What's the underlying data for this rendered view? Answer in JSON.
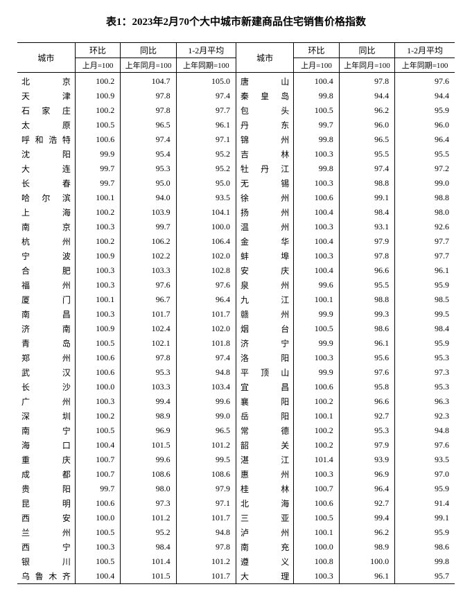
{
  "title": "表1：2023年2月70个大中城市新建商品住宅销售价格指数",
  "headers": {
    "city": "城市",
    "mom": "环比",
    "yoy": "同比",
    "avg": "1-2月平均",
    "mom_sub": "上月=100",
    "yoy_sub": "上年同月=100",
    "avg_sub": "上年同期=100"
  },
  "left": [
    {
      "city": "北京",
      "mom": "100.2",
      "yoy": "104.7",
      "avg": "105.0"
    },
    {
      "city": "天津",
      "mom": "100.9",
      "yoy": "97.8",
      "avg": "97.4"
    },
    {
      "city": "石家庄",
      "mom": "100.2",
      "yoy": "97.8",
      "avg": "97.7"
    },
    {
      "city": "太原",
      "mom": "100.5",
      "yoy": "96.5",
      "avg": "96.1"
    },
    {
      "city": "呼和浩特",
      "mom": "100.6",
      "yoy": "97.4",
      "avg": "97.1"
    },
    {
      "city": "沈阳",
      "mom": "99.9",
      "yoy": "95.4",
      "avg": "95.2"
    },
    {
      "city": "大连",
      "mom": "99.7",
      "yoy": "95.3",
      "avg": "95.2"
    },
    {
      "city": "长春",
      "mom": "99.7",
      "yoy": "95.0",
      "avg": "95.0"
    },
    {
      "city": "哈尔滨",
      "mom": "100.1",
      "yoy": "94.0",
      "avg": "93.5"
    },
    {
      "city": "上海",
      "mom": "100.2",
      "yoy": "103.9",
      "avg": "104.1"
    },
    {
      "city": "南京",
      "mom": "100.3",
      "yoy": "99.7",
      "avg": "100.0"
    },
    {
      "city": "杭州",
      "mom": "100.2",
      "yoy": "106.2",
      "avg": "106.4"
    },
    {
      "city": "宁波",
      "mom": "100.9",
      "yoy": "102.2",
      "avg": "102.0"
    },
    {
      "city": "合肥",
      "mom": "100.3",
      "yoy": "103.3",
      "avg": "102.8"
    },
    {
      "city": "福州",
      "mom": "100.3",
      "yoy": "97.6",
      "avg": "97.6"
    },
    {
      "city": "厦门",
      "mom": "100.1",
      "yoy": "96.7",
      "avg": "96.4"
    },
    {
      "city": "南昌",
      "mom": "100.3",
      "yoy": "101.7",
      "avg": "101.7"
    },
    {
      "city": "济南",
      "mom": "100.9",
      "yoy": "102.4",
      "avg": "102.0"
    },
    {
      "city": "青岛",
      "mom": "100.5",
      "yoy": "102.1",
      "avg": "101.8"
    },
    {
      "city": "郑州",
      "mom": "100.6",
      "yoy": "97.8",
      "avg": "97.4"
    },
    {
      "city": "武汉",
      "mom": "100.6",
      "yoy": "95.3",
      "avg": "94.8"
    },
    {
      "city": "长沙",
      "mom": "100.0",
      "yoy": "103.3",
      "avg": "103.4"
    },
    {
      "city": "广州",
      "mom": "100.3",
      "yoy": "99.4",
      "avg": "99.6"
    },
    {
      "city": "深圳",
      "mom": "100.2",
      "yoy": "98.9",
      "avg": "99.0"
    },
    {
      "city": "南宁",
      "mom": "100.5",
      "yoy": "96.9",
      "avg": "96.5"
    },
    {
      "city": "海口",
      "mom": "100.4",
      "yoy": "101.5",
      "avg": "101.2"
    },
    {
      "city": "重庆",
      "mom": "100.7",
      "yoy": "99.6",
      "avg": "99.5"
    },
    {
      "city": "成都",
      "mom": "100.7",
      "yoy": "108.6",
      "avg": "108.6"
    },
    {
      "city": "贵阳",
      "mom": "99.7",
      "yoy": "98.0",
      "avg": "97.9"
    },
    {
      "city": "昆明",
      "mom": "100.6",
      "yoy": "97.3",
      "avg": "97.1"
    },
    {
      "city": "西安",
      "mom": "100.0",
      "yoy": "101.2",
      "avg": "101.7"
    },
    {
      "city": "兰州",
      "mom": "100.5",
      "yoy": "95.2",
      "avg": "94.8"
    },
    {
      "city": "西宁",
      "mom": "100.3",
      "yoy": "98.4",
      "avg": "97.8"
    },
    {
      "city": "银川",
      "mom": "100.5",
      "yoy": "101.4",
      "avg": "101.2"
    },
    {
      "city": "乌鲁木齐",
      "mom": "100.4",
      "yoy": "101.5",
      "avg": "101.7"
    }
  ],
  "right": [
    {
      "city": "唐山",
      "mom": "100.4",
      "yoy": "97.8",
      "avg": "97.6"
    },
    {
      "city": "秦皇岛",
      "mom": "99.8",
      "yoy": "94.4",
      "avg": "94.4"
    },
    {
      "city": "包头",
      "mom": "100.5",
      "yoy": "96.2",
      "avg": "95.9"
    },
    {
      "city": "丹东",
      "mom": "99.7",
      "yoy": "96.0",
      "avg": "96.0"
    },
    {
      "city": "锦州",
      "mom": "99.8",
      "yoy": "96.5",
      "avg": "96.4"
    },
    {
      "city": "吉林",
      "mom": "100.3",
      "yoy": "95.5",
      "avg": "95.5"
    },
    {
      "city": "牡丹江",
      "mom": "99.8",
      "yoy": "97.4",
      "avg": "97.2"
    },
    {
      "city": "无锡",
      "mom": "100.3",
      "yoy": "98.8",
      "avg": "99.0"
    },
    {
      "city": "徐州",
      "mom": "100.6",
      "yoy": "99.1",
      "avg": "98.8"
    },
    {
      "city": "扬州",
      "mom": "100.4",
      "yoy": "98.4",
      "avg": "98.0"
    },
    {
      "city": "温州",
      "mom": "100.3",
      "yoy": "93.1",
      "avg": "92.6"
    },
    {
      "city": "金华",
      "mom": "100.4",
      "yoy": "97.9",
      "avg": "97.7"
    },
    {
      "city": "蚌埠",
      "mom": "100.3",
      "yoy": "97.8",
      "avg": "97.7"
    },
    {
      "city": "安庆",
      "mom": "100.4",
      "yoy": "96.6",
      "avg": "96.1"
    },
    {
      "city": "泉州",
      "mom": "99.6",
      "yoy": "95.5",
      "avg": "95.9"
    },
    {
      "city": "九江",
      "mom": "100.1",
      "yoy": "98.8",
      "avg": "98.5"
    },
    {
      "city": "赣州",
      "mom": "99.9",
      "yoy": "99.3",
      "avg": "99.5"
    },
    {
      "city": "烟台",
      "mom": "100.5",
      "yoy": "98.6",
      "avg": "98.4"
    },
    {
      "city": "济宁",
      "mom": "99.9",
      "yoy": "96.1",
      "avg": "95.9"
    },
    {
      "city": "洛阳",
      "mom": "100.3",
      "yoy": "95.6",
      "avg": "95.3"
    },
    {
      "city": "平顶山",
      "mom": "99.9",
      "yoy": "97.6",
      "avg": "97.3"
    },
    {
      "city": "宜昌",
      "mom": "100.6",
      "yoy": "95.8",
      "avg": "95.3"
    },
    {
      "city": "襄阳",
      "mom": "100.2",
      "yoy": "96.6",
      "avg": "96.3"
    },
    {
      "city": "岳阳",
      "mom": "100.1",
      "yoy": "92.7",
      "avg": "92.3"
    },
    {
      "city": "常德",
      "mom": "100.2",
      "yoy": "95.3",
      "avg": "94.8"
    },
    {
      "city": "韶关",
      "mom": "100.2",
      "yoy": "97.9",
      "avg": "97.6"
    },
    {
      "city": "湛江",
      "mom": "101.4",
      "yoy": "93.9",
      "avg": "93.5"
    },
    {
      "city": "惠州",
      "mom": "100.3",
      "yoy": "96.9",
      "avg": "97.0"
    },
    {
      "city": "桂林",
      "mom": "100.7",
      "yoy": "96.4",
      "avg": "95.9"
    },
    {
      "city": "北海",
      "mom": "100.6",
      "yoy": "92.7",
      "avg": "91.4"
    },
    {
      "city": "三亚",
      "mom": "100.5",
      "yoy": "99.4",
      "avg": "99.1"
    },
    {
      "city": "泸州",
      "mom": "100.1",
      "yoy": "96.2",
      "avg": "95.9"
    },
    {
      "city": "南充",
      "mom": "100.0",
      "yoy": "98.9",
      "avg": "98.6"
    },
    {
      "city": "遵义",
      "mom": "100.8",
      "yoy": "100.0",
      "avg": "99.8"
    },
    {
      "city": "大理",
      "mom": "100.3",
      "yoy": "96.1",
      "avg": "95.7"
    }
  ]
}
